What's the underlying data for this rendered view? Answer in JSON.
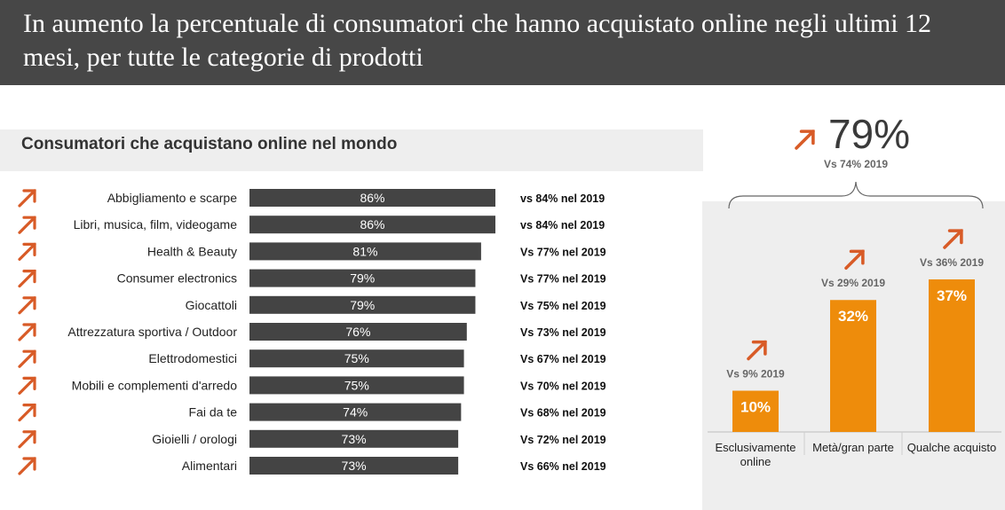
{
  "title": "In aumento la percentuale di consumatori che hanno acquistato online negli ultimi 12 mesi, per tutte le categorie di prodotti",
  "colors": {
    "dark_bar": "#444444",
    "orange": "#ee8c0b",
    "arrow": "#d85b27",
    "title_bg": "#474747",
    "panel_bg": "#eeeeee"
  },
  "chart_data": [
    {
      "type": "bar",
      "orientation": "horizontal",
      "title": "Consumatori che acquistano online nel mondo",
      "xlim": [
        0,
        100
      ],
      "categories": [
        "Abbigliamento e scarpe",
        "Libri, musica, film, videogame",
        "Health & Beauty",
        "Consumer electronics",
        "Giocattoli",
        "Attrezzatura sportiva / Outdoor",
        "Elettrodomestici",
        "Mobili e complementi d'arredo",
        "Fai da te",
        "Gioielli / orologi",
        "Alimentari"
      ],
      "values": [
        86,
        86,
        81,
        79,
        79,
        76,
        75,
        75,
        74,
        73,
        73
      ],
      "data_labels": [
        "86%",
        "86%",
        "81%",
        "79%",
        "79%",
        "76%",
        "75%",
        "75%",
        "74%",
        "73%",
        "73%"
      ],
      "comparisons": [
        "vs 84% nel 2019",
        "vs 84% nel 2019",
        "Vs 77% nel 2019",
        "Vs 77% nel 2019",
        "Vs 75% nel 2019",
        "Vs 73% nel 2019",
        "Vs 67% nel 2019",
        "Vs 70% nel 2019",
        "Vs 68% nel 2019",
        "Vs 72% nel 2019",
        "Vs 66% nel 2019"
      ],
      "trend_icon": "up-right-arrow-icon"
    },
    {
      "type": "bar",
      "orientation": "vertical",
      "total_label": "79%",
      "total_comparison": "Vs 74% 2019",
      "categories": [
        "Esclusivamente online",
        "Metà/gran parte",
        "Qualche acquisto"
      ],
      "values": [
        10,
        32,
        37
      ],
      "data_labels": [
        "10%",
        "32%",
        "37%"
      ],
      "comparisons": [
        "Vs 9% 2019",
        "Vs 29% 2019",
        "Vs 36% 2019"
      ],
      "trend_icon": "up-right-arrow-icon"
    }
  ]
}
